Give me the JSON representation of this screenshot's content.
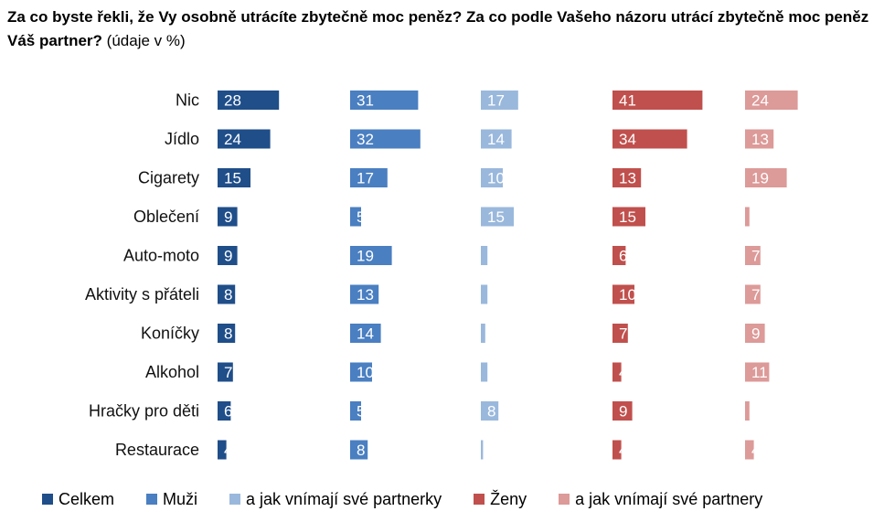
{
  "title": {
    "main": "Za co byste řekli, že Vy osobně utrácíte zbytečně moc peněz? Za co podle Vašeho názoru utrácí zbytečně moc peněz Váš partner?",
    "suffix": "(údaje v %)"
  },
  "chart_data": {
    "type": "bar",
    "orientation": "horizontal",
    "categories": [
      "Nic",
      "Jídlo",
      "Cigarety",
      "Oblečení",
      "Auto-moto",
      "Aktivity s přáteli",
      "Koníčky",
      "Alkohol",
      "Hračky pro děti",
      "Restaurace"
    ],
    "series": [
      {
        "name": "Celkem",
        "color": "#1f4e89",
        "values": [
          28,
          24,
          15,
          9,
          9,
          8,
          8,
          7,
          6,
          4
        ]
      },
      {
        "name": "Muži",
        "color": "#4a7fc1",
        "values": [
          31,
          32,
          17,
          5,
          19,
          13,
          14,
          10,
          5,
          8
        ]
      },
      {
        "name": "a jak vnímají své partnerky",
        "color": "#9ab8dc",
        "values": [
          17,
          14,
          10,
          15,
          3,
          3,
          2,
          3,
          8,
          1
        ]
      },
      {
        "name": "Ženy",
        "color": "#c0504d",
        "values": [
          41,
          34,
          13,
          15,
          6,
          10,
          7,
          4,
          9,
          4
        ]
      },
      {
        "name": "a jak vnímají své partnery",
        "color": "#dc9a98",
        "values": [
          24,
          13,
          19,
          2,
          7,
          7,
          9,
          11,
          2,
          4
        ]
      }
    ],
    "grid": false,
    "legend_position": "bottom"
  }
}
